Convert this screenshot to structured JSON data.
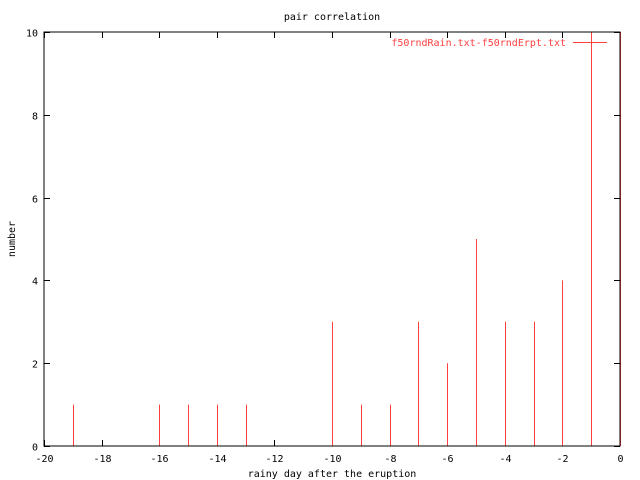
{
  "chart_data": {
    "type": "bar",
    "style": "impulses",
    "title": "pair correlation",
    "xlabel": "rainy day after the eruption",
    "ylabel": "number",
    "xlim": [
      -20,
      0
    ],
    "ylim": [
      0,
      10
    ],
    "xticks": [
      -20,
      -18,
      -16,
      -14,
      -12,
      -10,
      -8,
      -6,
      -4,
      -2,
      0
    ],
    "yticks": [
      0,
      2,
      4,
      6,
      8,
      10
    ],
    "grid": false,
    "legend_position": "top-right",
    "series": [
      {
        "name": "f50rndRain.txt-f50rndErpt.txt",
        "color": "#ff4040",
        "x": [
          -19,
          -16,
          -15,
          -14,
          -13,
          -10,
          -9,
          -8,
          -7,
          -6,
          -5,
          -4,
          -3,
          -2,
          -1,
          0
        ],
        "y": [
          1,
          1,
          1,
          1,
          1,
          3,
          1,
          1,
          3,
          2,
          5,
          3,
          3,
          4,
          10,
          10
        ]
      }
    ]
  }
}
